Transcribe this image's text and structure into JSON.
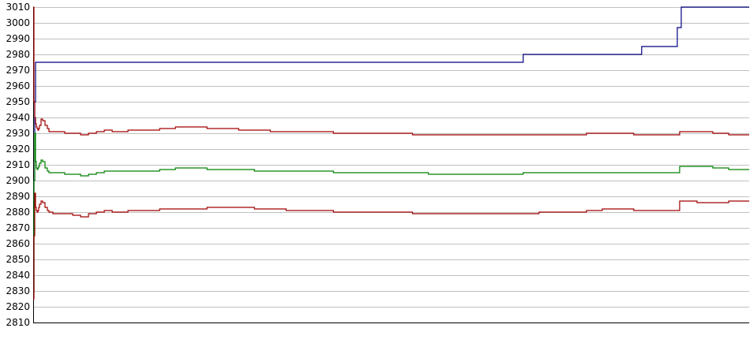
{
  "chart_data": {
    "type": "line",
    "title": "",
    "xlabel": "",
    "ylabel": "",
    "ylim": [
      2810,
      3010
    ],
    "yticks": [
      2810,
      2820,
      2830,
      2840,
      2850,
      2860,
      2870,
      2880,
      2890,
      2900,
      2910,
      2920,
      2930,
      2940,
      2950,
      2960,
      2970,
      2980,
      2990,
      3000,
      3010
    ],
    "grid": "horizontal",
    "legend": "none",
    "x": [
      0,
      1,
      2,
      3,
      4,
      5,
      6,
      7,
      8,
      10,
      12,
      15,
      18,
      20,
      25,
      30,
      35,
      40,
      50,
      60,
      70,
      80,
      90,
      100,
      120,
      140,
      160,
      180,
      200,
      220,
      240,
      260,
      280,
      300,
      320,
      340,
      360,
      380,
      400,
      420,
      440,
      460,
      480,
      500,
      520,
      540,
      560,
      580,
      600,
      610,
      620,
      640,
      660,
      680,
      700,
      720,
      740,
      760,
      765,
      770,
      780,
      800,
      810,
      815,
      818,
      820,
      830,
      840,
      860,
      880,
      900,
      906
    ],
    "series": [
      {
        "color": "#000080",
        "values": [
          2829,
          2900,
          2950,
          2975,
          2975,
          2975,
          2975,
          2975,
          2975,
          2975,
          2975,
          2975,
          2975,
          2975,
          2975,
          2975,
          2975,
          2975,
          2975,
          2975,
          2975,
          2975,
          2975,
          2975,
          2975,
          2975,
          2975,
          2975,
          2975,
          2975,
          2975,
          2975,
          2975,
          2975,
          2975,
          2975,
          2975,
          2975,
          2975,
          2975,
          2975,
          2975,
          2975,
          2975,
          2975,
          2975,
          2975,
          2975,
          2975,
          2975,
          2980,
          2980,
          2980,
          2980,
          2980,
          2980,
          2980,
          2980,
          2980,
          2985,
          2985,
          2985,
          2985,
          2997,
          2997,
          3010,
          3010,
          3010,
          3010,
          3010,
          3010,
          3010
        ]
      },
      {
        "color": "#a00000",
        "values": [
          3010,
          2950,
          2940,
          2936,
          2934,
          2933,
          2932,
          2933,
          2935,
          2939,
          2938,
          2935,
          2933,
          2931,
          2931,
          2931,
          2931,
          2930,
          2930,
          2929,
          2930,
          2931,
          2932,
          2931,
          2932,
          2932,
          2933,
          2934,
          2934,
          2933,
          2933,
          2932,
          2932,
          2931,
          2931,
          2931,
          2931,
          2930,
          2930,
          2930,
          2930,
          2930,
          2929,
          2929,
          2929,
          2929,
          2929,
          2929,
          2929,
          2929,
          2929,
          2929,
          2929,
          2929,
          2930,
          2930,
          2930,
          2929,
          2929,
          2929,
          2929,
          2929,
          2929,
          2929,
          2931,
          2931,
          2931,
          2931,
          2930,
          2929,
          2929,
          2929
        ]
      },
      {
        "color": "#008000",
        "values": [
          2830,
          2900,
          2930,
          2912,
          2908,
          2907,
          2908,
          2909,
          2911,
          2913,
          2912,
          2908,
          2906,
          2905,
          2905,
          2905,
          2905,
          2904,
          2904,
          2903,
          2904,
          2905,
          2906,
          2906,
          2906,
          2906,
          2907,
          2908,
          2908,
          2907,
          2907,
          2907,
          2906,
          2906,
          2906,
          2906,
          2906,
          2905,
          2905,
          2905,
          2905,
          2905,
          2905,
          2904,
          2904,
          2904,
          2904,
          2904,
          2904,
          2904,
          2905,
          2905,
          2905,
          2905,
          2905,
          2905,
          2905,
          2905,
          2905,
          2905,
          2905,
          2905,
          2905,
          2905,
          2909,
          2909,
          2909,
          2909,
          2908,
          2907,
          2907,
          2907
        ]
      },
      {
        "color": "#a00000",
        "values": [
          2825,
          2865,
          2892,
          2883,
          2881,
          2880,
          2881,
          2883,
          2885,
          2887,
          2886,
          2883,
          2881,
          2880,
          2879,
          2879,
          2879,
          2879,
          2878,
          2877,
          2879,
          2880,
          2881,
          2880,
          2881,
          2881,
          2882,
          2882,
          2882,
          2883,
          2883,
          2883,
          2882,
          2882,
          2881,
          2881,
          2881,
          2880,
          2880,
          2880,
          2880,
          2880,
          2879,
          2879,
          2879,
          2879,
          2879,
          2879,
          2879,
          2879,
          2879,
          2880,
          2880,
          2880,
          2881,
          2882,
          2882,
          2881,
          2881,
          2881,
          2881,
          2881,
          2881,
          2881,
          2887,
          2887,
          2887,
          2886,
          2886,
          2887,
          2887,
          2887
        ]
      }
    ]
  }
}
